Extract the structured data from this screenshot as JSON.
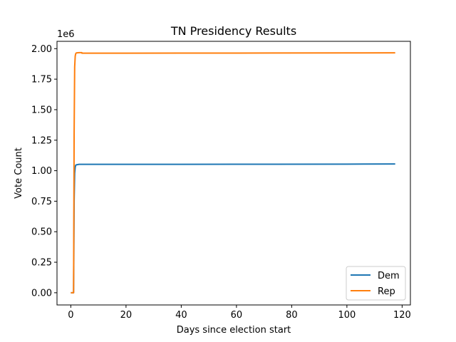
{
  "chart_data": {
    "type": "line",
    "title": "TN Presidency Results",
    "xlabel": "Days since election start",
    "ylabel": "Vote Count",
    "y_offset_text": "1e6",
    "xlim": [
      -5,
      123
    ],
    "ylim": [
      -0.1,
      2.06
    ],
    "x_ticks": [
      0,
      20,
      40,
      60,
      80,
      100,
      120
    ],
    "x_tick_labels": [
      "0",
      "20",
      "40",
      "60",
      "80",
      "100",
      "120"
    ],
    "y_ticks": [
      0.0,
      0.25,
      0.5,
      0.75,
      1.0,
      1.25,
      1.5,
      1.75,
      2.0
    ],
    "y_tick_labels": [
      "0.00",
      "0.25",
      "0.50",
      "0.75",
      "1.00",
      "1.25",
      "1.50",
      "1.75",
      "2.00"
    ],
    "y_scale_note": "values in units of 1e6 votes",
    "grid": false,
    "legend_position": "lower-right",
    "series": [
      {
        "name": "Dem",
        "color": "#1f77b4",
        "x": [
          0.0,
          1.0,
          1.1,
          1.2,
          1.4,
          1.6,
          1.8,
          2.0,
          3.0,
          5.0,
          20.0,
          60.0,
          100.0,
          117.5
        ],
        "y": [
          0.0,
          0.0,
          0.35,
          0.75,
          0.98,
          1.03,
          1.045,
          1.048,
          1.052,
          1.052,
          1.052,
          1.053,
          1.054,
          1.055
        ]
      },
      {
        "name": "Rep",
        "color": "#ff7f0e",
        "x": [
          0.0,
          1.0,
          1.1,
          1.2,
          1.4,
          1.6,
          1.8,
          2.0,
          3.0,
          4.0,
          4.01,
          20.0,
          60.0,
          100.0,
          117.5
        ],
        "y": [
          0.0,
          0.0,
          0.6,
          1.3,
          1.85,
          1.94,
          1.96,
          1.965,
          1.967,
          1.967,
          1.963,
          1.963,
          1.964,
          1.965,
          1.966
        ]
      }
    ]
  }
}
